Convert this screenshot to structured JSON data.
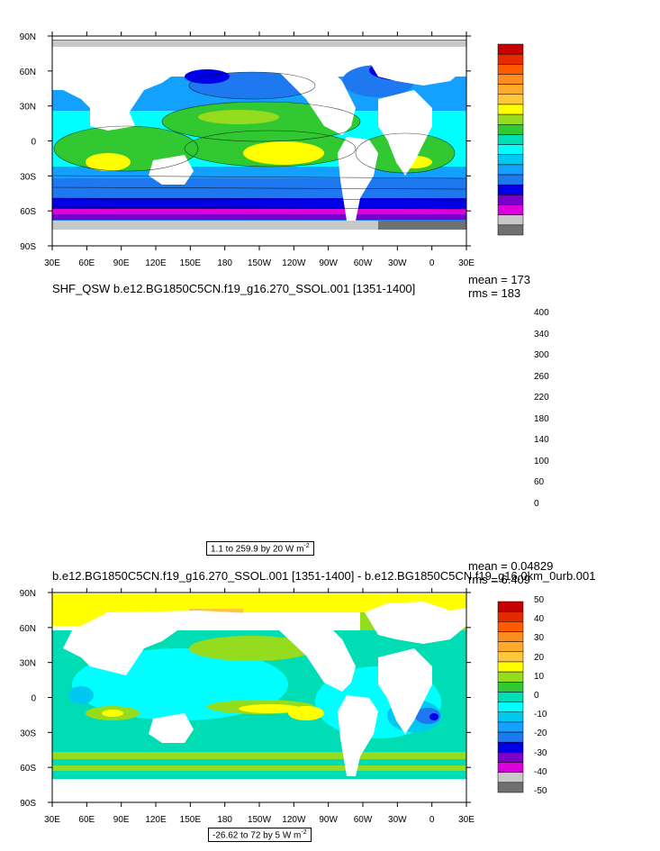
{
  "panels": [
    {
      "title": "SHF_QSW b.e12.BG1850C5CN.f19_g16.270_SSOL.001 [1351-1400]",
      "mean_text": "mean = 173",
      "rms_text": "rms = 183",
      "range_text": "1.1 to 259.9 by 20",
      "units_text": "W m",
      "units_exp": "-2",
      "colorbar": {
        "labels": [
          "400",
          "340",
          "300",
          "260",
          "220",
          "180",
          "140",
          "100",
          "60",
          "0"
        ],
        "colors": [
          "#c80000",
          "#e62a00",
          "#ff5a00",
          "#ff8c1e",
          "#ffaa28",
          "#ffc83c",
          "#ffff00",
          "#96dc1e",
          "#32c832",
          "#00dcb4",
          "#00ffff",
          "#00c8f0",
          "#14a0ff",
          "#1e78f0",
          "#0000e6",
          "#7800c8",
          "#dc00dc",
          "#c8c8c8",
          "#707070"
        ]
      }
    },
    {
      "title": "b.e12.BG1850C5CN.f19_g16.270_SSOL.001 [1351-1400] - b.e12.BG1850C5CN.f19_g16.0km_0urb.001",
      "mean_text": "mean = 0.04829",
      "rms_text": "rms = 6.409",
      "range_text": "-26.62 to 72 by 5",
      "units_text": "W m",
      "units_exp": "-2",
      "colorbar": {
        "labels": [
          "50",
          "40",
          "30",
          "20",
          "10",
          "0",
          "-10",
          "-20",
          "-30",
          "-40",
          "-50"
        ],
        "colors": [
          "#c80000",
          "#e62a00",
          "#ff5a00",
          "#ff8c1e",
          "#ffaa28",
          "#ffc83c",
          "#ffff00",
          "#96dc1e",
          "#32c832",
          "#00dcb4",
          "#00ffff",
          "#00c8f0",
          "#14a0ff",
          "#1e78f0",
          "#0000e6",
          "#7800c8",
          "#dc00dc",
          "#c8c8c8",
          "#707070"
        ]
      }
    }
  ],
  "map_axes": {
    "lon_labels": [
      "30E",
      "60E",
      "90E",
      "120E",
      "150E",
      "180",
      "150W",
      "120W",
      "90W",
      "60W",
      "30W",
      "0",
      "30E"
    ],
    "lat_labels": [
      "90N",
      "60N",
      "30N",
      "0",
      "30S",
      "60S",
      "90S"
    ]
  }
}
